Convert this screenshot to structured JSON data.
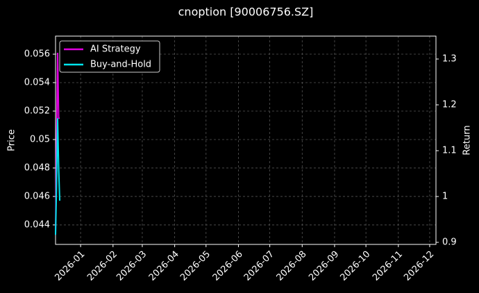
{
  "chart_data": {
    "type": "line",
    "title": "cnoption [90006756.SZ]",
    "y_label": "Price",
    "y2_label": "Return",
    "x": [
      0,
      1,
      2,
      3,
      4
    ],
    "xlim": [
      0,
      364
    ],
    "xticks": [
      {
        "value": 24,
        "label": "2026-01"
      },
      {
        "value": 55,
        "label": "2026-02"
      },
      {
        "value": 83,
        "label": "2026-03"
      },
      {
        "value": 114,
        "label": "2026-04"
      },
      {
        "value": 144,
        "label": "2026-05"
      },
      {
        "value": 175,
        "label": "2026-06"
      },
      {
        "value": 205,
        "label": "2026-07"
      },
      {
        "value": 236,
        "label": "2026-08"
      },
      {
        "value": 267,
        "label": "2026-09"
      },
      {
        "value": 297,
        "label": "2026-10"
      },
      {
        "value": 328,
        "label": "2026-11"
      },
      {
        "value": 358,
        "label": "2026-12"
      }
    ],
    "ylim": [
      0.04263,
      0.05727
    ],
    "yticks": [
      0.044,
      0.046,
      0.048,
      0.05,
      0.052,
      0.054,
      0.056
    ],
    "y2lim": [
      0.8955,
      1.35
    ],
    "y2ticks": [
      0.9,
      1.0,
      1.1,
      1.2,
      1.3
    ],
    "series": [
      {
        "name": "AI Strategy",
        "color": "#e000e0",
        "values": [
          0.0433,
          0.05,
          0.0561,
          0.0515,
          0.0515
        ]
      },
      {
        "name": "Buy-and-Hold",
        "color": "#00e5ee",
        "values": [
          0.0433,
          0.047,
          0.0515,
          0.048,
          0.0457
        ]
      }
    ],
    "grid": true,
    "legend": "upper-left"
  }
}
